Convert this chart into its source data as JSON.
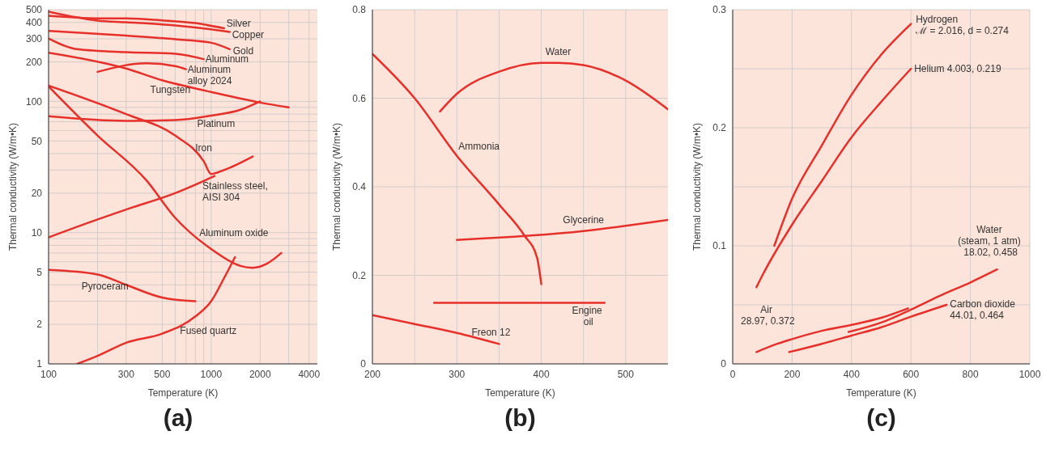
{
  "chart_data": [
    {
      "type": "line",
      "xlabel": "Temperature (K)",
      "ylabel": "Thermal conductivity (W/m•K)",
      "log": "xy",
      "grid": true,
      "marker": "none",
      "line_style": "solid",
      "annotations": [
        "(a)"
      ],
      "xlim": [
        100,
        4500
      ],
      "xticks": [
        100,
        {
          "value": 200,
          "label": null
        },
        300,
        500,
        {
          "value": 600,
          "label": null
        },
        {
          "value": 700,
          "label": null
        },
        {
          "value": 800,
          "label": null
        },
        {
          "value": 900,
          "label": null
        },
        1000,
        2000,
        {
          "value": 3000,
          "label": null
        },
        4000
      ],
      "ylim": [
        1,
        500
      ],
      "yticks": [
        1,
        2,
        {
          "value": 3,
          "label": null
        },
        {
          "value": 4,
          "label": null
        },
        5,
        {
          "value": 6,
          "label": null
        },
        {
          "value": 7,
          "label": null
        },
        {
          "value": 8,
          "label": null
        },
        {
          "value": 9,
          "label": null
        },
        10,
        20,
        {
          "value": 30,
          "label": null
        },
        {
          "value": 40,
          "label": null
        },
        50,
        {
          "value": 60,
          "label": null
        },
        {
          "value": 70,
          "label": null
        },
        {
          "value": 80,
          "label": null
        },
        {
          "value": 90,
          "label": null
        },
        100,
        200,
        300,
        400,
        500
      ],
      "series": [
        {
          "name": "Silver",
          "color": "#e8302a",
          "x": [
            100,
            200,
            300,
            500,
            800,
            1200
          ],
          "values": [
            450,
            430,
            429,
            415,
            395,
            361
          ]
        },
        {
          "name": "Copper",
          "color": "#e8302a",
          "x": [
            100,
            200,
            300,
            500,
            800,
            1300
          ],
          "values": [
            482,
            413,
            401,
            386,
            366,
            339
          ]
        },
        {
          "name": "Gold",
          "color": "#e8302a",
          "x": [
            100,
            300,
            600,
            1000,
            1300
          ],
          "values": [
            345,
            317,
            298,
            280,
            250
          ]
        },
        {
          "name": "Aluminum",
          "color": "#e8302a",
          "x": [
            100,
            150,
            300,
            600,
            900
          ],
          "values": [
            302,
            250,
            237,
            231,
            210
          ]
        },
        {
          "name": "Aluminum\nalloy 2024",
          "color": "#e8302a",
          "x": [
            200,
            400,
            600,
            700
          ],
          "values": [
            168,
            195,
            186,
            176
          ]
        },
        {
          "name": "Tungsten",
          "color": "#e8302a",
          "x": [
            100,
            300,
            500,
            1000,
            2000,
            3000
          ],
          "values": [
            235,
            178,
            145,
            118,
            98,
            90
          ]
        },
        {
          "name": "Platinum",
          "color": "#e8302a",
          "x": [
            100,
            300,
            600,
            1000,
            1500,
            2000
          ],
          "values": [
            77,
            71,
            72,
            78,
            86,
            100
          ]
        },
        {
          "name": "Iron",
          "color": "#e8302a",
          "x": [
            100,
            300,
            600,
            900,
            1000,
            1200,
            1800
          ],
          "values": [
            132,
            80,
            55,
            35,
            28,
            30,
            38
          ]
        },
        {
          "name": "Stainless steel,\nAISI 304",
          "color": "#e8302a",
          "x": [
            100,
            200,
            300,
            600,
            1050
          ],
          "values": [
            9.2,
            12.6,
            15,
            20,
            27
          ]
        },
        {
          "name": "Aluminum oxide",
          "color": "#e8302a",
          "x": [
            100,
            200,
            400,
            600,
            1000,
            1500,
            1800,
            2200,
            2700
          ],
          "values": [
            130,
            55,
            25,
            13,
            7.5,
            5.6,
            5.4,
            5.8,
            7
          ]
        },
        {
          "name": "Pyroceram",
          "color": "#e8302a",
          "x": [
            100,
            200,
            300,
            500,
            800
          ],
          "values": [
            5.2,
            4.8,
            4,
            3.2,
            3
          ]
        },
        {
          "name": "Fused quartz",
          "color": "#e8302a",
          "x": [
            150,
            200,
            300,
            500,
            800,
            1000,
            1200,
            1400
          ],
          "values": [
            1,
            1.15,
            1.45,
            1.7,
            2.3,
            3,
            4.5,
            6.5
          ]
        }
      ]
    },
    {
      "type": "line",
      "xlabel": "Temperature (K)",
      "ylabel": "Thermal conductivity (W/m•K)",
      "grid": true,
      "marker": "none",
      "line_style": "solid",
      "annotations": [
        "(b)"
      ],
      "xlim": [
        200,
        550
      ],
      "xticks": [
        200,
        {
          "value": 250,
          "label": null
        },
        300,
        {
          "value": 350,
          "label": null
        },
        400,
        {
          "value": 450,
          "label": null
        },
        500
      ],
      "ylim": [
        0,
        0.8
      ],
      "yticks": [
        0,
        0.2,
        0.4,
        0.6,
        0.8
      ],
      "series": [
        {
          "name": "Water",
          "color": "#e8302a",
          "x": [
            280,
            300,
            350,
            400,
            420,
            450,
            500,
            550
          ],
          "values": [
            0.57,
            0.61,
            0.66,
            0.68,
            0.68,
            0.675,
            0.64,
            0.575
          ]
        },
        {
          "name": "Ammonia",
          "color": "#e8302a",
          "x": [
            200,
            250,
            300,
            350,
            380,
            395,
            400
          ],
          "values": [
            0.7,
            0.6,
            0.47,
            0.36,
            0.29,
            0.24,
            0.18
          ]
        },
        {
          "name": "Glycerine",
          "color": "#e8302a",
          "x": [
            300,
            450,
            550
          ],
          "values": [
            0.28,
            0.3,
            0.325
          ]
        },
        {
          "name": "Engine\noil",
          "color": "#e8302a",
          "x": [
            273,
            475
          ],
          "values": [
            0.138,
            0.138
          ]
        },
        {
          "name": "Freon 12",
          "color": "#e8302a",
          "x": [
            200,
            250,
            300,
            350
          ],
          "values": [
            0.11,
            0.09,
            0.07,
            0.045
          ]
        }
      ]
    },
    {
      "type": "line",
      "xlabel": "Temperature (K)",
      "ylabel": "Thermal conductivity (W/m•K)",
      "grid": true,
      "marker": "none",
      "line_style": "solid",
      "annotations": [
        "(c)"
      ],
      "xlim": [
        0,
        1000
      ],
      "xticks": [
        0,
        200,
        400,
        600,
        800,
        1000
      ],
      "ylim": [
        0,
        0.3
      ],
      "yticks": [
        0,
        {
          "value": 0.05,
          "label": null
        },
        0.1,
        {
          "value": 0.15,
          "label": null
        },
        0.2,
        {
          "value": 0.25,
          "label": null
        },
        0.3
      ],
      "series": [
        {
          "name": "Hydrogen\nℳ = 2.016, d = 0.274",
          "color": "#e8302a",
          "x": [
            140,
            200,
            300,
            400,
            500,
            600
          ],
          "values": [
            0.1,
            0.14,
            0.185,
            0.228,
            0.262,
            0.288
          ]
        },
        {
          "name": "Helium 4.003, 0.219",
          "color": "#e8302a",
          "x": [
            80,
            100,
            200,
            300,
            400,
            500,
            600
          ],
          "values": [
            0.065,
            0.075,
            0.118,
            0.155,
            0.192,
            0.222,
            0.25
          ]
        },
        {
          "name": "Water\n(steam, 1 atm)\n18.02, 0.458",
          "color": "#e8302a",
          "x": [
            390,
            500,
            600,
            700,
            800,
            890
          ],
          "values": [
            0.027,
            0.035,
            0.046,
            0.058,
            0.069,
            0.08
          ]
        },
        {
          "name": "Carbon dioxide\n44.01, 0.464",
          "color": "#e8302a",
          "x": [
            190,
            300,
            400,
            500,
            600,
            720
          ],
          "values": [
            0.01,
            0.017,
            0.024,
            0.031,
            0.04,
            0.05
          ]
        },
        {
          "name": "Air\n28.97, 0.372",
          "color": "#e8302a",
          "x": [
            80,
            150,
            200,
            300,
            400,
            500,
            590
          ],
          "values": [
            0.01,
            0.017,
            0.021,
            0.028,
            0.033,
            0.039,
            0.047
          ]
        }
      ]
    }
  ]
}
